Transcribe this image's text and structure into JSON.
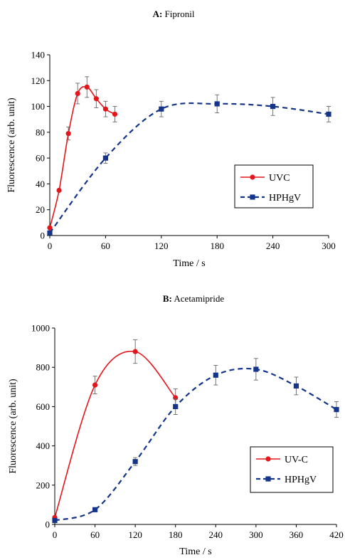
{
  "chart_data": [
    {
      "type": "line",
      "title_bold": "A:",
      "title_rest": " Fipronil",
      "xlabel": "Time / s",
      "ylabel": "Fluorescence (arb. unit)",
      "xlim": [
        0,
        300
      ],
      "ylim": [
        0,
        140
      ],
      "xticks": [
        0,
        60,
        120,
        180,
        240,
        300
      ],
      "yticks": [
        0,
        20,
        40,
        60,
        80,
        100,
        120,
        140
      ],
      "grid": false,
      "legend_position": "right-middle",
      "series": [
        {
          "name": "UVC",
          "color": "#e3161c",
          "marker": "circle",
          "line": "solid",
          "points": [
            {
              "x": 0,
              "y": 6,
              "err": 0
            },
            {
              "x": 10,
              "y": 35,
              "err": 0
            },
            {
              "x": 20,
              "y": 79,
              "err": 5
            },
            {
              "x": 30,
              "y": 110,
              "err": 8
            },
            {
              "x": 40,
              "y": 115,
              "err": 8
            },
            {
              "x": 50,
              "y": 106,
              "err": 7
            },
            {
              "x": 60,
              "y": 98,
              "err": 6
            },
            {
              "x": 70,
              "y": 94,
              "err": 6
            }
          ]
        },
        {
          "name": "HPHgV",
          "color": "#14358a",
          "marker": "square",
          "line": "dashed",
          "points": [
            {
              "x": 0,
              "y": 2,
              "err": 0
            },
            {
              "x": 60,
              "y": 60,
              "err": 4
            },
            {
              "x": 120,
              "y": 98,
              "err": 6
            },
            {
              "x": 180,
              "y": 102,
              "err": 7
            },
            {
              "x": 240,
              "y": 100,
              "err": 7
            },
            {
              "x": 300,
              "y": 94,
              "err": 6
            }
          ]
        }
      ]
    },
    {
      "type": "line",
      "title_bold": "B:",
      "title_rest": " Acetamipride",
      "xlabel": "Time / s",
      "ylabel": "Fluorescence (arb. unit)",
      "xlim": [
        0,
        420
      ],
      "ylim": [
        0,
        1000
      ],
      "xticks": [
        0,
        60,
        120,
        180,
        240,
        300,
        360,
        420
      ],
      "yticks": [
        0,
        200,
        400,
        600,
        800,
        1000
      ],
      "grid": false,
      "legend_position": "bottom-right",
      "series": [
        {
          "name": "UV-C",
          "color": "#e3161c",
          "marker": "circle",
          "line": "solid",
          "points": [
            {
              "x": 0,
              "y": 35,
              "err": 0
            },
            {
              "x": 60,
              "y": 710,
              "err": 45
            },
            {
              "x": 120,
              "y": 880,
              "err": 60
            },
            {
              "x": 180,
              "y": 645,
              "err": 45
            }
          ]
        },
        {
          "name": "HPHgV",
          "color": "#14358a",
          "marker": "square",
          "line": "dashed",
          "points": [
            {
              "x": 0,
              "y": 20,
              "err": 0
            },
            {
              "x": 60,
              "y": 75,
              "err": 8
            },
            {
              "x": 120,
              "y": 320,
              "err": 20
            },
            {
              "x": 180,
              "y": 600,
              "err": 40
            },
            {
              "x": 240,
              "y": 760,
              "err": 50
            },
            {
              "x": 300,
              "y": 790,
              "err": 55
            },
            {
              "x": 360,
              "y": 705,
              "err": 45
            },
            {
              "x": 420,
              "y": 585,
              "err": 40
            }
          ]
        }
      ]
    }
  ]
}
